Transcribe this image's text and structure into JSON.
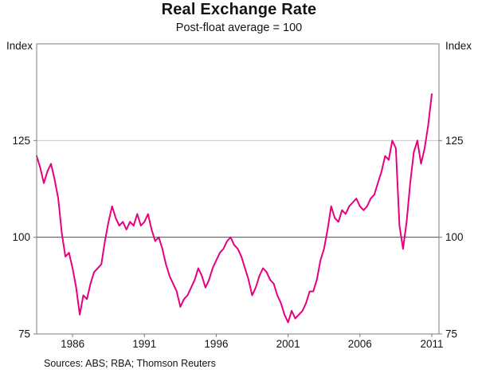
{
  "title": "Real Exchange Rate",
  "subtitle": "Post-float average = 100",
  "footer": "Sources: ABS; RBA; Thomson Reuters",
  "chart_data": {
    "type": "line",
    "title": "Real Exchange Rate",
    "subtitle": "Post-float average = 100",
    "ylabel": "Index",
    "ylabel_right": "Index",
    "ylim": [
      75,
      150
    ],
    "yticks": [
      75,
      100,
      125
    ],
    "xlim": [
      1983.5,
      2011.5
    ],
    "xticks": [
      1986,
      1991,
      1996,
      2001,
      2006,
      2011
    ],
    "reference_line": 100,
    "grid": "horizontal-only",
    "legend": "none",
    "line_color": "#e6007e",
    "series": [
      {
        "name": "Real exchange rate (post-float average = 100)",
        "points": [
          [
            1983.5,
            121
          ],
          [
            1983.75,
            118
          ],
          [
            1984,
            114
          ],
          [
            1984.25,
            117
          ],
          [
            1984.5,
            119
          ],
          [
            1984.75,
            115
          ],
          [
            1985,
            110
          ],
          [
            1985.25,
            101
          ],
          [
            1985.5,
            95
          ],
          [
            1985.75,
            96
          ],
          [
            1986,
            92
          ],
          [
            1986.25,
            87
          ],
          [
            1986.5,
            80
          ],
          [
            1986.75,
            85
          ],
          [
            1987,
            84
          ],
          [
            1987.25,
            88
          ],
          [
            1987.5,
            91
          ],
          [
            1987.75,
            92
          ],
          [
            1988,
            93
          ],
          [
            1988.25,
            99
          ],
          [
            1988.5,
            104
          ],
          [
            1988.75,
            108
          ],
          [
            1989,
            105
          ],
          [
            1989.25,
            103
          ],
          [
            1989.5,
            104
          ],
          [
            1989.75,
            102
          ],
          [
            1990,
            104
          ],
          [
            1990.25,
            103
          ],
          [
            1990.5,
            106
          ],
          [
            1990.75,
            103
          ],
          [
            1991,
            104
          ],
          [
            1991.25,
            106
          ],
          [
            1991.5,
            102
          ],
          [
            1991.75,
            99
          ],
          [
            1992,
            100
          ],
          [
            1992.25,
            97
          ],
          [
            1992.5,
            93
          ],
          [
            1992.75,
            90
          ],
          [
            1993,
            88
          ],
          [
            1993.25,
            86
          ],
          [
            1993.5,
            82
          ],
          [
            1993.75,
            84
          ],
          [
            1994,
            85
          ],
          [
            1994.25,
            87
          ],
          [
            1994.5,
            89
          ],
          [
            1994.75,
            92
          ],
          [
            1995,
            90
          ],
          [
            1995.25,
            87
          ],
          [
            1995.5,
            89
          ],
          [
            1995.75,
            92
          ],
          [
            1996,
            94
          ],
          [
            1996.25,
            96
          ],
          [
            1996.5,
            97
          ],
          [
            1996.75,
            99
          ],
          [
            1997,
            100
          ],
          [
            1997.25,
            98
          ],
          [
            1997.5,
            97
          ],
          [
            1997.75,
            95
          ],
          [
            1998,
            92
          ],
          [
            1998.25,
            89
          ],
          [
            1998.5,
            85
          ],
          [
            1998.75,
            87
          ],
          [
            1999,
            90
          ],
          [
            1999.25,
            92
          ],
          [
            1999.5,
            91
          ],
          [
            1999.75,
            89
          ],
          [
            2000,
            88
          ],
          [
            2000.25,
            85
          ],
          [
            2000.5,
            83
          ],
          [
            2000.75,
            80
          ],
          [
            2001,
            78
          ],
          [
            2001.25,
            81
          ],
          [
            2001.5,
            79
          ],
          [
            2001.75,
            80
          ],
          [
            2002,
            81
          ],
          [
            2002.25,
            83
          ],
          [
            2002.5,
            86
          ],
          [
            2002.75,
            86
          ],
          [
            2003,
            89
          ],
          [
            2003.25,
            94
          ],
          [
            2003.5,
            97
          ],
          [
            2003.75,
            102
          ],
          [
            2004,
            108
          ],
          [
            2004.25,
            105
          ],
          [
            2004.5,
            104
          ],
          [
            2004.75,
            107
          ],
          [
            2005,
            106
          ],
          [
            2005.25,
            108
          ],
          [
            2005.5,
            109
          ],
          [
            2005.75,
            110
          ],
          [
            2006,
            108
          ],
          [
            2006.25,
            107
          ],
          [
            2006.5,
            108
          ],
          [
            2006.75,
            110
          ],
          [
            2007,
            111
          ],
          [
            2007.25,
            114
          ],
          [
            2007.5,
            117
          ],
          [
            2007.75,
            121
          ],
          [
            2008,
            120
          ],
          [
            2008.25,
            125
          ],
          [
            2008.5,
            123
          ],
          [
            2008.75,
            103
          ],
          [
            2009,
            97
          ],
          [
            2009.25,
            104
          ],
          [
            2009.5,
            114
          ],
          [
            2009.75,
            122
          ],
          [
            2010,
            125
          ],
          [
            2010.25,
            119
          ],
          [
            2010.5,
            123
          ],
          [
            2010.75,
            129
          ],
          [
            2011,
            137
          ]
        ]
      }
    ]
  }
}
